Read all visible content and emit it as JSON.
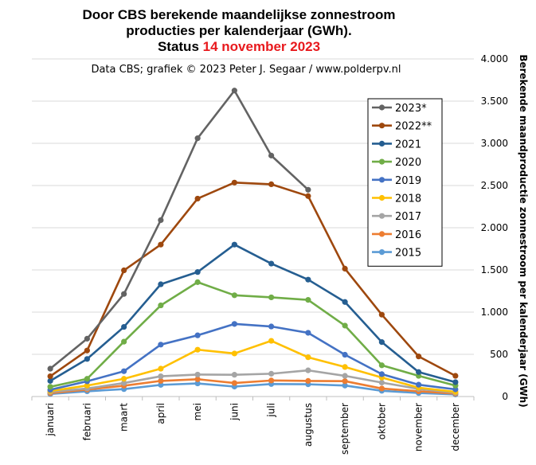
{
  "chart_data": {
    "type": "line",
    "title_lines": [
      "Door CBS berekende maandelijkse  zonnestroom",
      "producties per kalenderjaar (GWh)."
    ],
    "status_label": "Status",
    "status_date": "14 november 2023",
    "subtitle": "Data CBS;  grafiek © 2023  Peter J. Segaar / www.polderpv.nl",
    "ylabel": "Berekende maandproductie  zonnestroom  per kalenderjaar  (GWh)",
    "ylim": [
      0,
      4000
    ],
    "yticks": [
      0,
      500,
      1000,
      1500,
      2000,
      2500,
      3000,
      3500,
      4000
    ],
    "ytick_labels": [
      "0",
      "500",
      "1.000",
      "1.500",
      "2.000",
      "2.500",
      "3.000",
      "3.500",
      "4.000"
    ],
    "grid": true,
    "legend_position": "top-right",
    "categories": [
      "januari",
      "februari",
      "maart",
      "april",
      "mei",
      "juni",
      "juli",
      "augustus",
      "september",
      "oktober",
      "november",
      "december"
    ],
    "series": [
      {
        "name": "2015",
        "color": "#5b9bd5",
        "values": [
          30,
          62,
          88,
          138,
          155,
          118,
          148,
          145,
          130,
          68,
          42,
          25
        ]
      },
      {
        "name": "2016",
        "color": "#ed7d31",
        "values": [
          40,
          82,
          128,
          185,
          205,
          160,
          190,
          185,
          182,
          95,
          62,
          35
        ]
      },
      {
        "name": "2017",
        "color": "#a5a5a5",
        "values": [
          55,
          95,
          160,
          240,
          260,
          258,
          270,
          310,
          245,
          165,
          90,
          45
        ]
      },
      {
        "name": "2018",
        "color": "#ffc000",
        "values": [
          65,
          130,
          210,
          330,
          555,
          510,
          660,
          465,
          350,
          225,
          105,
          55
        ]
      },
      {
        "name": "2019",
        "color": "#4472c4",
        "values": [
          80,
          180,
          300,
          615,
          725,
          860,
          830,
          755,
          495,
          265,
          140,
          85
        ]
      },
      {
        "name": "2020",
        "color": "#70ad47",
        "values": [
          115,
          210,
          650,
          1080,
          1355,
          1200,
          1175,
          1145,
          840,
          370,
          245,
          130
        ]
      },
      {
        "name": "2021",
        "color": "#255e91",
        "values": [
          185,
          445,
          825,
          1330,
          1475,
          1800,
          1575,
          1385,
          1120,
          645,
          290,
          170
        ]
      },
      {
        "name": "2022**",
        "color": "#9e480e",
        "values": [
          240,
          545,
          1495,
          1800,
          2345,
          2535,
          2515,
          2375,
          1515,
          970,
          475,
          245
        ]
      },
      {
        "name": "2023*",
        "color": "#636363",
        "values": [
          330,
          685,
          1215,
          2090,
          3060,
          3625,
          2855,
          2450,
          null,
          null,
          null,
          null
        ]
      }
    ]
  }
}
